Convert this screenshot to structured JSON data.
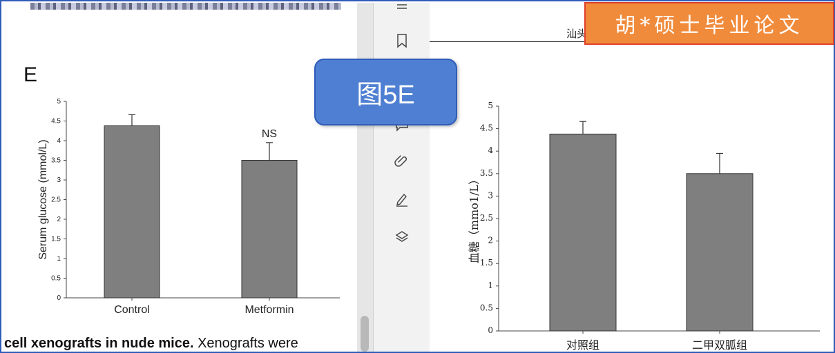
{
  "banner": {
    "text": "胡*硕士毕业论文"
  },
  "callout": {
    "text": "图5E"
  },
  "left_panel": {
    "panel_letter": "E",
    "caption_bold": "cell xenografts in nude mice.",
    "caption_rest": " Xenografts were"
  },
  "right_panel": {
    "header_text": "汕头"
  },
  "toolbar": {
    "icons": [
      "list-icon",
      "bookmark-icon",
      "comment-icon",
      "attachment-icon",
      "signature-icon",
      "layers-icon"
    ]
  },
  "colors": {
    "frame": "#2f5cb8",
    "bar": "#7f7f7f",
    "banner": "#f08b3c",
    "callout": "#4f7fd2"
  },
  "chart_data": [
    {
      "type": "bar",
      "title": "",
      "xlabel": "",
      "ylabel": "Serum glucose (mmol/L)",
      "categories": [
        "Control",
        "Metformin"
      ],
      "values": [
        4.38,
        3.5
      ],
      "errors": [
        0.28,
        0.45
      ],
      "annotations": [
        "",
        "NS"
      ],
      "ylim": [
        0,
        5
      ],
      "yticks": [
        "0",
        "0.5",
        "1",
        "1.5",
        "2",
        "2.5",
        "3",
        "3.5",
        "4",
        "4.5",
        "5"
      ],
      "grid": false
    },
    {
      "type": "bar",
      "title": "",
      "xlabel": "",
      "ylabel": "血糖（mmo1/L）",
      "categories": [
        "对照组",
        "二甲双胍组"
      ],
      "values": [
        4.38,
        3.5
      ],
      "errors": [
        0.28,
        0.45
      ],
      "annotations": [
        "",
        ""
      ],
      "ylim": [
        0,
        5
      ],
      "yticks": [
        "0",
        "0.5",
        "1",
        "1.5",
        "2",
        "2.5",
        "3",
        "3.5",
        "4",
        "4.5",
        "5"
      ],
      "grid": false
    }
  ]
}
